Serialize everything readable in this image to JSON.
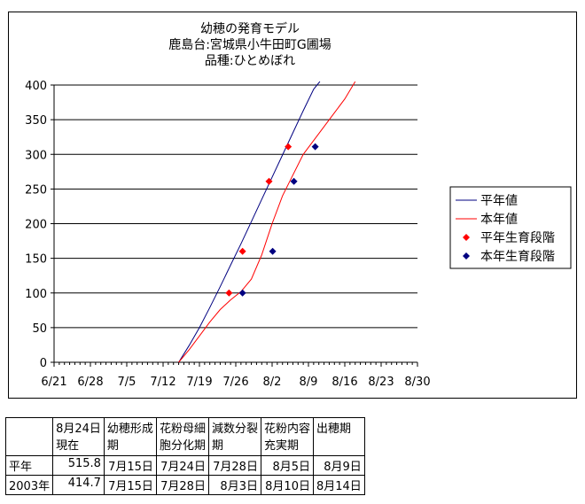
{
  "chart_data": {
    "type": "line",
    "title_lines": [
      "幼穂の発育モデル",
      "鹿島台:宮城県小牛田町G圃場",
      "品種:ひとめぼれ"
    ],
    "x_ticks": [
      "6/21",
      "6/28",
      "7/5",
      "7/12",
      "7/19",
      "7/26",
      "8/2",
      "8/9",
      "8/16",
      "8/23",
      "8/30"
    ],
    "x_ticks_day": [
      0,
      7,
      14,
      21,
      28,
      35,
      42,
      49,
      56,
      63,
      70
    ],
    "xlim_day": [
      0,
      70
    ],
    "ylim": [
      0,
      400
    ],
    "y_ticks": [
      0,
      50,
      100,
      150,
      200,
      250,
      300,
      350,
      400
    ],
    "grid": "horizontal",
    "legend_position": "right",
    "series": [
      {
        "name": "平年値",
        "kind": "line",
        "color": "#000080",
        "points": [
          [
            24,
            0
          ],
          [
            26,
            24
          ],
          [
            28,
            50
          ],
          [
            30,
            79
          ],
          [
            32,
            109
          ],
          [
            34,
            140
          ],
          [
            36,
            171
          ],
          [
            38,
            203
          ],
          [
            40,
            235
          ],
          [
            42,
            267
          ],
          [
            44,
            299
          ],
          [
            46,
            331
          ],
          [
            48,
            363
          ],
          [
            50,
            394
          ],
          [
            51.2,
            405
          ]
        ]
      },
      {
        "name": "本年値",
        "kind": "line",
        "color": "#ff0000",
        "points": [
          [
            24,
            0
          ],
          [
            26,
            18
          ],
          [
            28,
            38
          ],
          [
            30,
            58
          ],
          [
            32,
            76
          ],
          [
            34,
            90
          ],
          [
            36,
            102
          ],
          [
            38,
            120
          ],
          [
            40,
            155
          ],
          [
            42,
            200
          ],
          [
            44,
            240
          ],
          [
            46,
            270
          ],
          [
            48,
            300
          ],
          [
            50,
            320
          ],
          [
            52,
            340
          ],
          [
            54,
            360
          ],
          [
            56,
            380
          ],
          [
            58,
            405
          ]
        ]
      },
      {
        "name": "平年生育段階",
        "kind": "markers",
        "color": "#ff0000",
        "points": [
          [
            33.7,
            100
          ],
          [
            36.3,
            160
          ],
          [
            41.4,
            261
          ],
          [
            45.1,
            311
          ]
        ]
      },
      {
        "name": "本年生育段階",
        "kind": "markers",
        "color": "#000080",
        "points": [
          [
            36.3,
            100
          ],
          [
            42.1,
            160
          ],
          [
            46.2,
            261
          ],
          [
            50.3,
            311
          ]
        ]
      }
    ]
  },
  "table": {
    "headers": [
      "",
      "8月24日現在",
      "幼穂形成期",
      "花粉母細胞分化期",
      "減数分裂期",
      "花粉内容充実期",
      "出穂期"
    ],
    "header_lines": [
      [
        ""
      ],
      [
        "8月24日",
        "現在"
      ],
      [
        "幼穂形成",
        "期"
      ],
      [
        "花粉母細",
        "胞分化期"
      ],
      [
        "減数分裂",
        "期"
      ],
      [
        "花粉内容",
        "充実期"
      ],
      [
        "出穂期"
      ]
    ],
    "rows": [
      [
        "平年",
        "515.8",
        "7月15日",
        "7月24日",
        "7月28日",
        "8月5日",
        "8月9日"
      ],
      [
        "2003年",
        "414.7",
        "7月15日",
        "7月28日",
        "8月3日",
        "8月10日",
        "8月14日"
      ]
    ]
  }
}
